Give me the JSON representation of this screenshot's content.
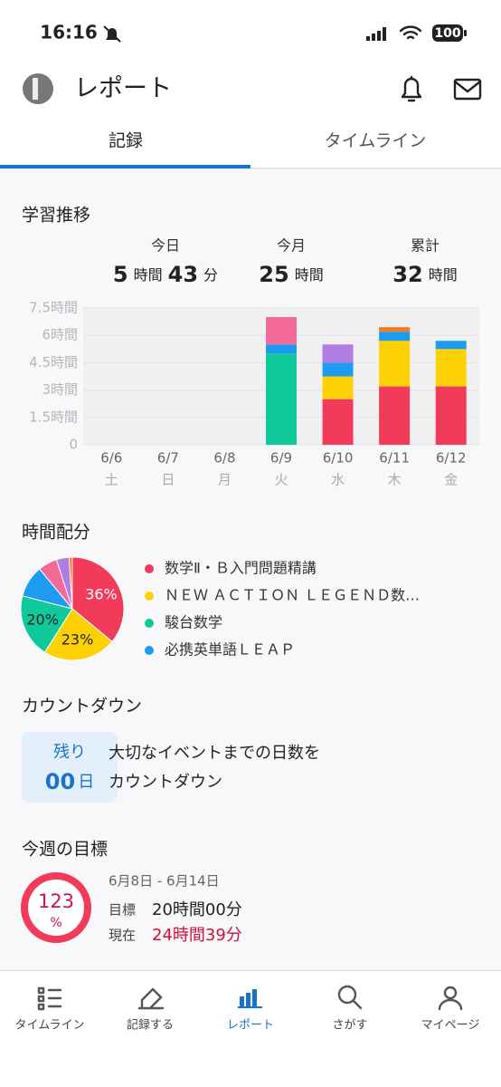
{
  "status_bar": {
    "time": "16:16",
    "battery": "100"
  },
  "header": {
    "title": "レポート"
  },
  "tabs": [
    "記録",
    "タイムライン"
  ],
  "study_stats": [
    {
      "label": "今日",
      "parts": [
        "5",
        "時間",
        "43",
        "分"
      ]
    },
    {
      "label": "今月",
      "parts": [
        "25",
        "時間"
      ]
    },
    {
      "label": "累計",
      "parts": [
        "32",
        "時間"
      ]
    }
  ],
  "chart_data": [
    {
      "type": "bar",
      "title": "学習推移",
      "stacked": true,
      "categories": [
        "6/6",
        "6/7",
        "6/8",
        "6/9",
        "6/10",
        "6/11",
        "6/12"
      ],
      "weekdays": [
        "土",
        "日",
        "月",
        "火",
        "水",
        "木",
        "金"
      ],
      "series": [
        {
          "color": "#f23a5b",
          "values": [
            0,
            0,
            0,
            0,
            2.5,
            3.2,
            3.2
          ]
        },
        {
          "color": "#fdd104",
          "values": [
            0,
            0,
            0,
            0,
            1.25,
            2.5,
            2.05
          ]
        },
        {
          "color": "#10c99b",
          "values": [
            0,
            0,
            0,
            5,
            0,
            0,
            0
          ]
        },
        {
          "color": "#1d9bf0",
          "values": [
            0,
            0,
            0,
            0.5,
            0.75,
            0.5,
            0.45
          ]
        },
        {
          "color": "#b07ee3",
          "values": [
            0,
            0,
            0,
            0,
            1,
            0,
            0
          ]
        },
        {
          "color": "#f36a99",
          "values": [
            0,
            0,
            0,
            1.5,
            0,
            0,
            0
          ]
        },
        {
          "color": "#f47a20",
          "values": [
            0,
            0,
            0,
            0,
            0,
            0.25,
            0
          ]
        }
      ],
      "ylim": [
        0,
        7.5
      ],
      "yticks": [
        0,
        {
          "value": 1.5,
          "label": "1.5時間"
        },
        {
          "value": 3,
          "label": "3時間"
        },
        {
          "value": 4.5,
          "label": "4.5時間"
        },
        {
          "value": 6,
          "label": "6時間"
        },
        {
          "value": 7.5,
          "label": "7.5時間"
        }
      ],
      "grid": true
    },
    {
      "type": "pie",
      "title": "時間配分",
      "categories": [
        "数学Ⅱ・Ｂ入門問題精講",
        "ＮＥＷ ＡＣＴＩＯＮ ＬＥＧＥＮＤ数…",
        "駿台数学",
        "必携英単語ＬＥＡＰ",
        null,
        null,
        null
      ],
      "values": [
        36,
        23,
        20,
        10,
        6,
        4,
        1
      ],
      "value_labels": [
        "36%",
        "23%",
        "20%",
        null,
        null,
        null,
        null
      ],
      "colors": [
        "#f23a5b",
        "#fdd104",
        "#10c99b",
        "#1d9bf0",
        "#f36a99",
        "#b07ee3",
        "#f47a20"
      ]
    }
  ],
  "countdown": {
    "title": "カウントダウン",
    "remaining": "残り",
    "days": "00",
    "days_unit": "日",
    "text_lines": [
      "大切なイベントまでの日数を",
      "カウントダウン"
    ]
  },
  "weekly_goal": {
    "title": "今週の目標",
    "percent": "123",
    "percent_unit": "%",
    "period": "6月8日 - 6月14日",
    "goal_label": "目標",
    "goal_value": "20時間00分",
    "current_label": "現在",
    "current_value": "24時間39分"
  },
  "nav": [
    "タイムライン",
    "記録する",
    "レポート",
    "さがす",
    "マイページ"
  ]
}
